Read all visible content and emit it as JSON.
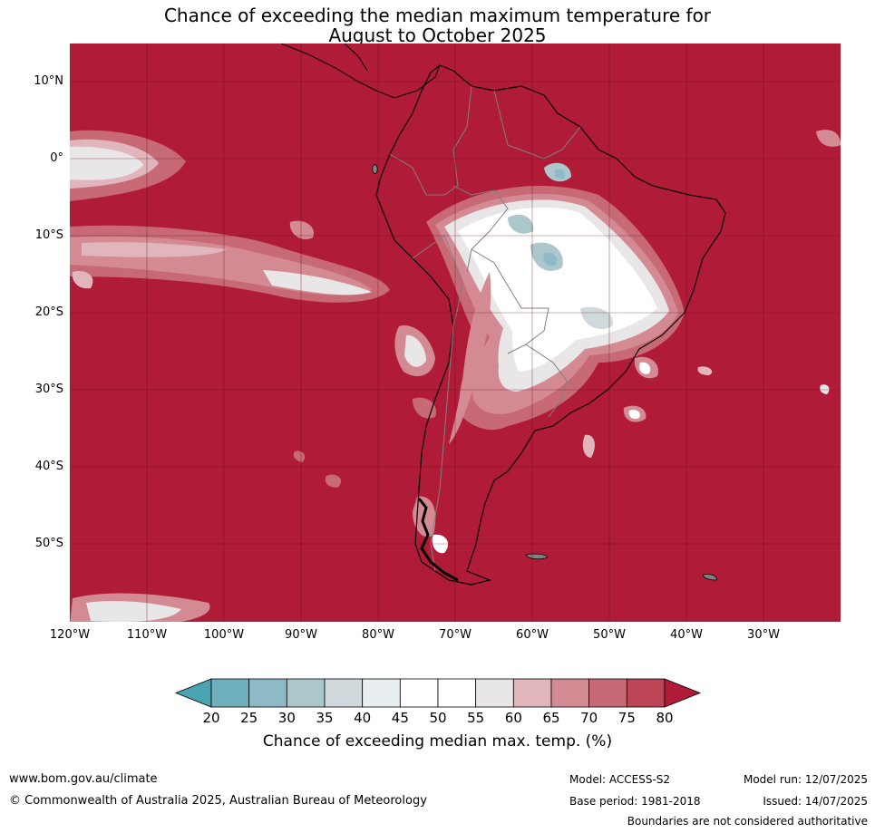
{
  "title": {
    "line1": "Chance of exceeding the median maximum temperature for",
    "line2": "August to October 2025"
  },
  "map": {
    "region": "South America",
    "projection": "equirectangular",
    "lon_range": [
      -120,
      -20
    ],
    "lat_range": [
      -60,
      15
    ],
    "lat_labels": [
      "10°N",
      "0°",
      "10°S",
      "20°S",
      "30°S",
      "40°S",
      "50°S"
    ],
    "lon_labels": [
      "120°W",
      "110°W",
      "100°W",
      "90°W",
      "80°W",
      "70°W",
      "60°W",
      "50°W",
      "40°W",
      "30°W"
    ],
    "gridlines": true,
    "dominant_category": "above 80"
  },
  "colorbar": {
    "ticks": [
      "20",
      "25",
      "30",
      "35",
      "40",
      "45",
      "50",
      "55",
      "60",
      "65",
      "70",
      "75",
      "80"
    ],
    "colors": [
      "#4aa3b0",
      "#6fb0bc",
      "#8eb9c6",
      "#abc7cb",
      "#d0dadd",
      "#e9eff1",
      "#ffffff",
      "#ffffff",
      "#e8e6e6",
      "#e0b5bb",
      "#d48a93",
      "#c86a75",
      "#bd4454",
      "#b01c37"
    ],
    "label": "Chance of exceeding median max. temp. (%)"
  },
  "footer": {
    "url": "www.bom.gov.au/climate",
    "copyright": "© Commonwealth of Australia 2025, Australian Bureau of Meteorology",
    "model": "Model: ACCESS-S2",
    "base_period": "Base period: 1981-2018",
    "model_run": "Model run: 12/07/2025",
    "issued": "Issued: 14/07/2025",
    "disclaimer": "Boundaries are not considered authoritative"
  }
}
